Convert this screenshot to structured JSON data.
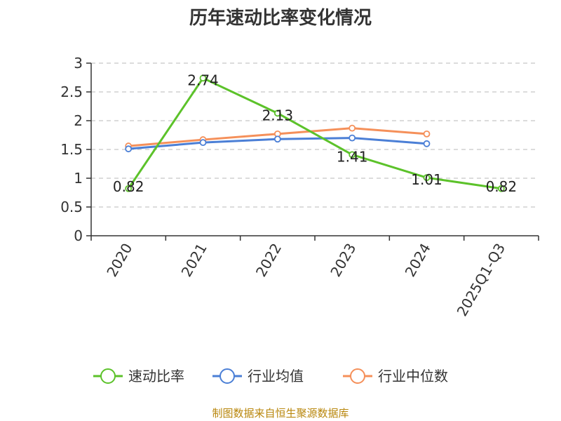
{
  "chart_data": {
    "type": "line",
    "title": "历年速动比率变化情况",
    "categories": [
      "2020",
      "2021",
      "2022",
      "2023",
      "2024",
      "2025Q1-Q3"
    ],
    "ylim": [
      0,
      3
    ],
    "yticks": [
      "0",
      "0.5",
      "1",
      "1.5",
      "2",
      "2.5",
      "3"
    ],
    "grid": true,
    "legend_position": "bottom",
    "series": [
      {
        "name": "速动比率",
        "color": "#5cc22a",
        "values": [
          0.82,
          2.74,
          2.13,
          1.41,
          1.01,
          0.82
        ],
        "labels": [
          "0.82",
          "2.74",
          "2.13",
          "1.41",
          "1.01",
          "0.82"
        ]
      },
      {
        "name": "行业均值",
        "color": "#4b7fd6",
        "values": [
          1.51,
          1.62,
          1.68,
          1.7,
          1.6,
          null
        ]
      },
      {
        "name": "行业中位数",
        "color": "#f5905a",
        "values": [
          1.56,
          1.67,
          1.77,
          1.87,
          1.77,
          null
        ]
      }
    ]
  },
  "source": "制图数据来自恒生聚源数据库"
}
